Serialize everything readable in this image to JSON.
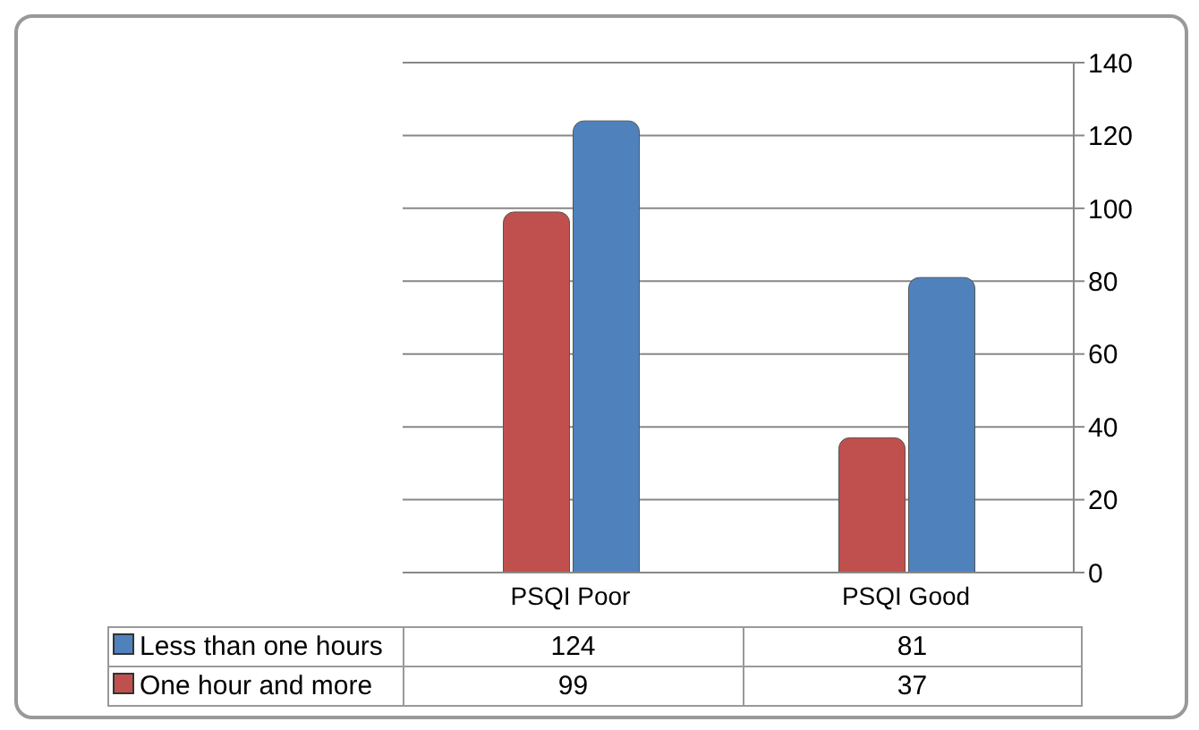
{
  "chart_data": {
    "type": "bar",
    "categories": [
      "PSQI Poor",
      "PSQI Good"
    ],
    "series": [
      {
        "name": "Less than one hours",
        "color": "#4f81bd",
        "values": [
          124,
          81
        ]
      },
      {
        "name": "One hour and more",
        "color": "#c0504d",
        "values": [
          99,
          37
        ]
      }
    ],
    "ylim": [
      0,
      140
    ],
    "yticks": [
      0,
      20,
      40,
      60,
      80,
      100,
      120,
      140
    ],
    "grid": "y",
    "legend": "bottom",
    "data_labels": true
  }
}
